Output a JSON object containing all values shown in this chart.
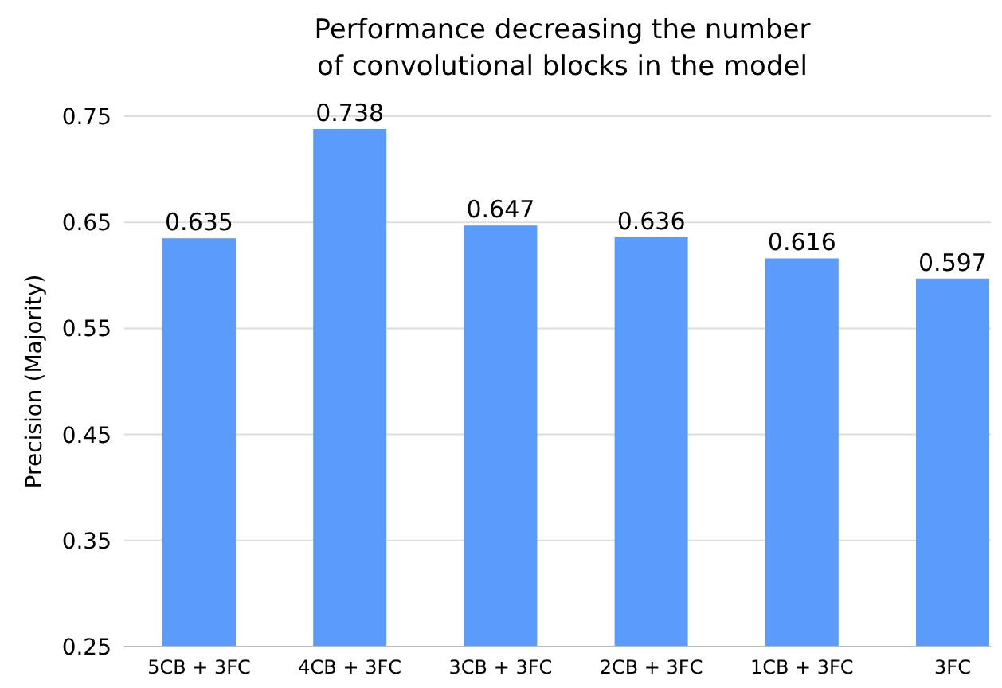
{
  "chart_data": {
    "type": "bar",
    "title": "Performance decreasing the number\nof convolutional blocks in the model",
    "ylabel": "Precision (Majority)",
    "categories": [
      "5CB + 3FC",
      "4CB + 3FC",
      "3CB + 3FC",
      "2CB + 3FC",
      "1CB + 3FC",
      "3FC"
    ],
    "values": [
      0.635,
      0.738,
      0.647,
      0.636,
      0.616,
      0.597
    ],
    "color": "#5b9bfb",
    "ylim": [
      0.25,
      0.75
    ],
    "yticks": [
      0.25,
      0.35,
      0.45,
      0.55,
      0.65,
      0.75
    ],
    "grid": "y",
    "data_labels": true
  }
}
